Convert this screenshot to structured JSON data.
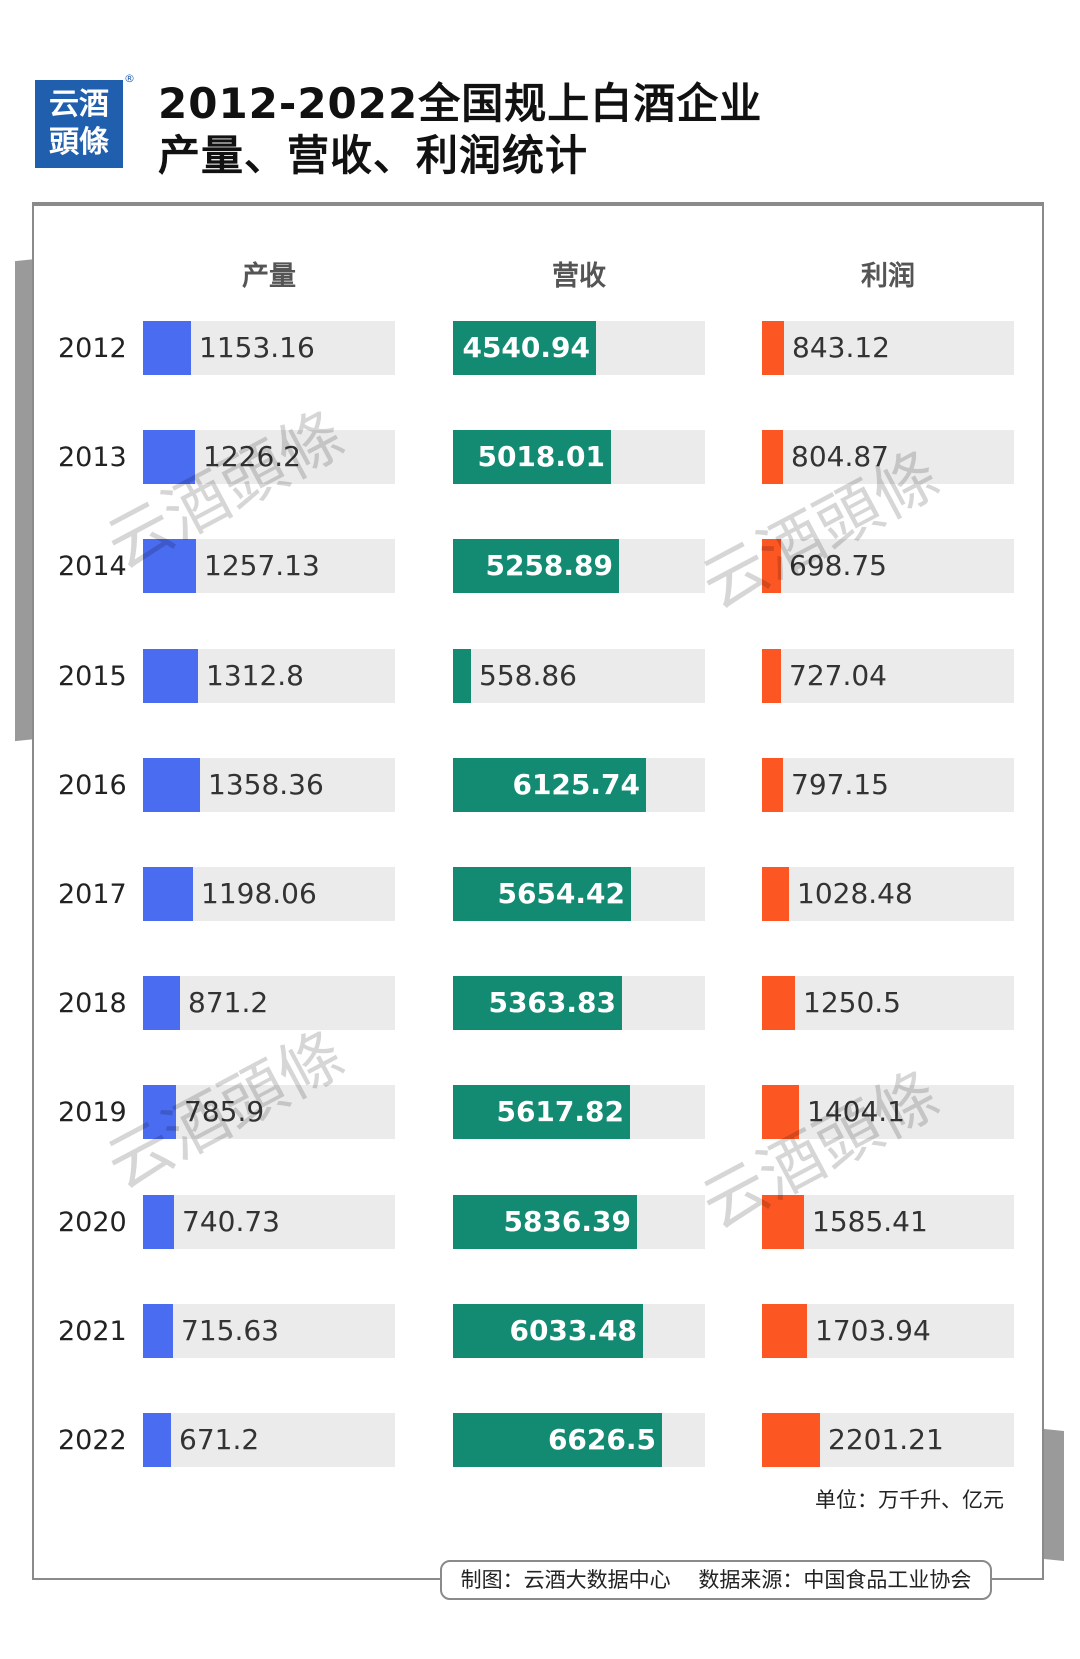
{
  "header": {
    "logo_line1": "云酒",
    "logo_line2": "頭條",
    "logo_reg": "®",
    "title_line1": "2012-2022全国规上白酒企业",
    "title_line2": "产量、营收、利润统计"
  },
  "watermark_text": "云酒頭條",
  "chart_data": {
    "type": "bar",
    "orientation": "horizontal",
    "title": "2012-2022全国规上白酒企业产量、营收、利润统计",
    "categories": [
      "2012",
      "2013",
      "2014",
      "2015",
      "2016",
      "2017",
      "2018",
      "2019",
      "2020",
      "2021",
      "2022"
    ],
    "series": [
      {
        "name": "产量",
        "color": "#4a6cf1",
        "max": 6000,
        "values": [
          1153.16,
          1226.2,
          1257.13,
          1312.8,
          1358.36,
          1198.06,
          871.2,
          785.9,
          740.73,
          715.63,
          671.2
        ],
        "labels": [
          "1153.16",
          "1226.2",
          "1257.13",
          "1312.8",
          "1358.36",
          "1198.06",
          "871.2",
          "785.9",
          "740.73",
          "715.63",
          "671.2"
        ]
      },
      {
        "name": "营收",
        "color": "#138a72",
        "max": 8000,
        "values": [
          4540.94,
          5018.01,
          5258.89,
          558.86,
          6125.74,
          5654.42,
          5363.83,
          5617.82,
          5836.39,
          6033.48,
          6626.5
        ],
        "labels": [
          "4540.94",
          "5018.01",
          "5258.89",
          "558.86",
          "6125.74",
          "5654.42",
          "5363.83",
          "5617.82",
          "5836.39",
          "6033.48",
          "6626.5"
        ]
      },
      {
        "name": "利润",
        "color": "#fc5623",
        "max": 9500,
        "values": [
          843.12,
          804.87,
          698.75,
          727.04,
          797.15,
          1028.48,
          1250.5,
          1404.1,
          1585.41,
          1703.94,
          2201.21
        ],
        "labels": [
          "843.12",
          "804.87",
          "698.75",
          "727.04",
          "797.15",
          "1028.48",
          "1250.5",
          "1404.1",
          "1585.41",
          "1703.94",
          "2201.21"
        ]
      }
    ],
    "unit": "单位：万千升、亿元"
  },
  "footer": "制图：云酒大数据中心　 数据来源：中国食品工业协会"
}
